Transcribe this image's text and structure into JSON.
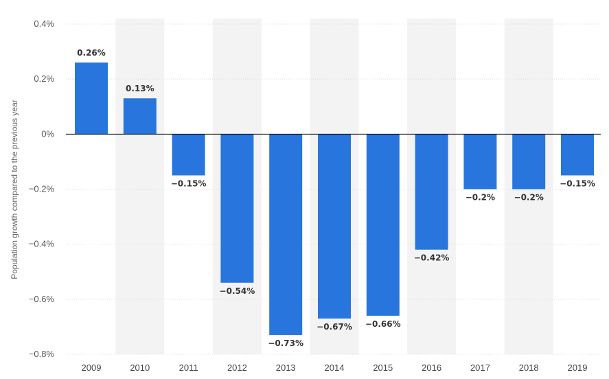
{
  "chart_data": {
    "type": "bar",
    "categories": [
      "2009",
      "2010",
      "2011",
      "2012",
      "2013",
      "2014",
      "2015",
      "2016",
      "2017",
      "2018",
      "2019"
    ],
    "values": [
      0.26,
      0.13,
      -0.15,
      -0.54,
      -0.73,
      -0.67,
      -0.66,
      -0.42,
      -0.2,
      -0.2,
      -0.15
    ],
    "data_labels": [
      "0.26%",
      "0.13%",
      "−0.15%",
      "−0.54%",
      "−0.73%",
      "−0.67%",
      "−0.66%",
      "−0.42%",
      "−0.2%",
      "−0.2%",
      "−0.15%"
    ],
    "title": "",
    "xlabel": "",
    "ylabel": "Population growth compared to the previous year",
    "ylim": [
      -0.8,
      0.4
    ],
    "yticks": [
      0.4,
      0.2,
      0,
      -0.2,
      -0.4,
      -0.6,
      -0.8
    ],
    "ytick_labels": [
      "0.4%",
      "0.2%",
      "0%",
      "−0.2%",
      "−0.4%",
      "−0.6%",
      "−0.8%"
    ],
    "grid": true,
    "legend": "none",
    "colors": {
      "bar": "#2876dd",
      "alt_band": "#f3f3f3",
      "grid": "#dddddd",
      "zero_line": "#000000"
    }
  }
}
